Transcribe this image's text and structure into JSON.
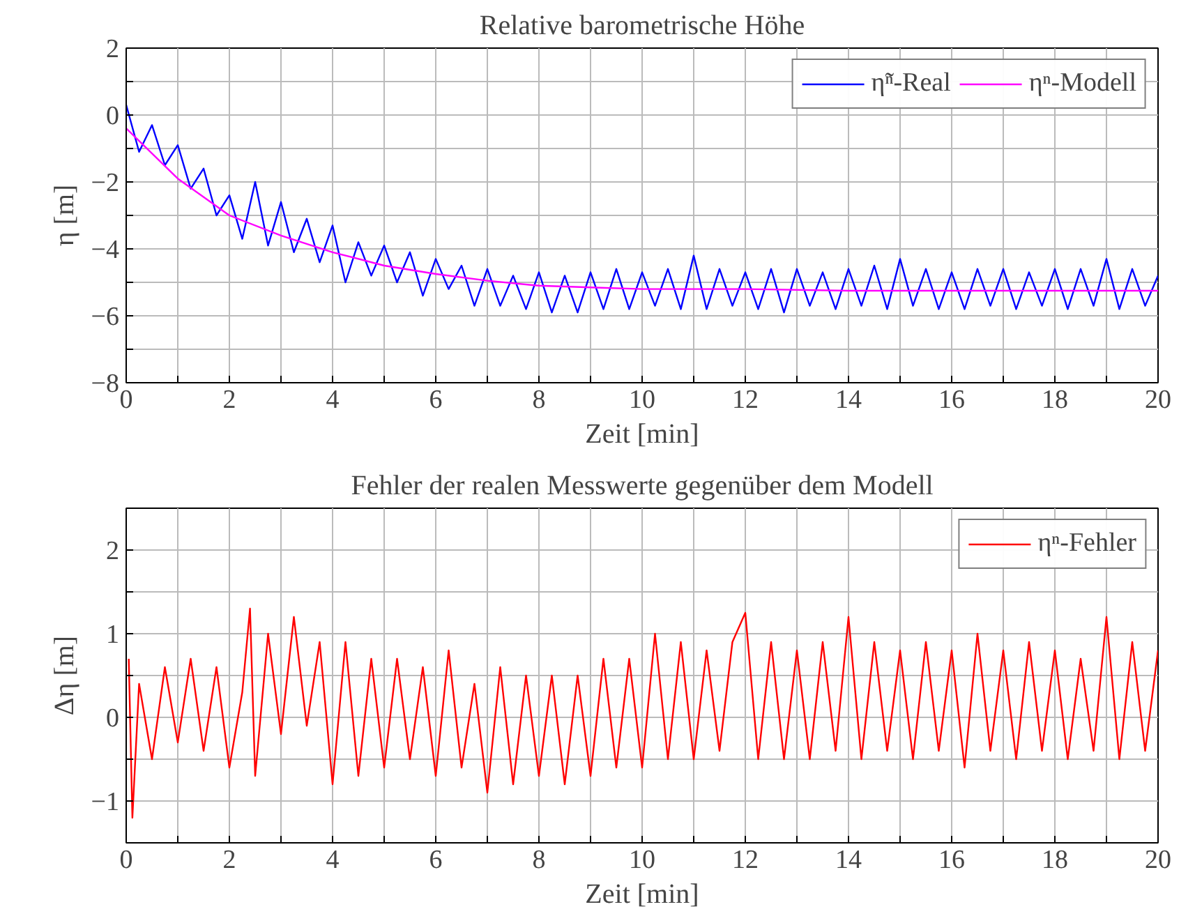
{
  "chart_data": [
    {
      "type": "line",
      "title": "Relative barometrische Höhe",
      "xlabel": "Zeit [min]",
      "ylabel": "η [m]",
      "xlim": [
        0,
        20
      ],
      "ylim": [
        -8,
        2
      ],
      "xticks": [
        0,
        {
          "value": 1,
          "label": null
        },
        2,
        {
          "value": 3,
          "label": null
        },
        4,
        {
          "value": 5,
          "label": null
        },
        6,
        {
          "value": 7,
          "label": null
        },
        8,
        {
          "value": 9,
          "label": null
        },
        10,
        {
          "value": 11,
          "label": null
        },
        12,
        {
          "value": 13,
          "label": null
        },
        14,
        {
          "value": 15,
          "label": null
        },
        16,
        {
          "value": 17,
          "label": null
        },
        18,
        {
          "value": 19,
          "label": null
        },
        20
      ],
      "yticks": [
        -8,
        {
          "value": -7,
          "label": null
        },
        -6,
        {
          "value": -5,
          "label": null
        },
        -4,
        {
          "value": -3,
          "label": null
        },
        -2,
        {
          "value": -1,
          "label": null
        },
        0,
        {
          "value": 1,
          "label": null
        },
        2
      ],
      "grid": true,
      "legend": "top right",
      "marker": "none",
      "line_style": "solid",
      "series": [
        {
          "name": "η̃ⁿ-Real",
          "color": "#0000ff",
          "x": [
            0,
            0.25,
            0.5,
            0.75,
            1,
            1.25,
            1.5,
            1.75,
            2,
            2.25,
            2.5,
            2.75,
            3,
            3.25,
            3.5,
            3.75,
            4,
            4.25,
            4.5,
            4.75,
            5,
            5.25,
            5.5,
            5.75,
            6,
            6.25,
            6.5,
            6.75,
            7,
            7.25,
            7.5,
            7.75,
            8,
            8.25,
            8.5,
            8.75,
            9,
            9.25,
            9.5,
            9.75,
            10,
            10.25,
            10.5,
            10.75,
            11,
            11.25,
            11.5,
            11.75,
            12,
            12.25,
            12.5,
            12.75,
            13,
            13.25,
            13.5,
            13.75,
            14,
            14.25,
            14.5,
            14.75,
            15,
            15.25,
            15.5,
            15.75,
            16,
            16.25,
            16.5,
            16.75,
            17,
            17.25,
            17.5,
            17.75,
            18,
            18.25,
            18.5,
            18.75,
            19,
            19.25,
            19.5,
            19.75,
            20
          ],
          "values": [
            0.3,
            -1.1,
            -0.3,
            -1.5,
            -0.9,
            -2.2,
            -1.6,
            -3.0,
            -2.4,
            -3.7,
            -2.0,
            -3.9,
            -2.6,
            -4.1,
            -3.1,
            -4.4,
            -3.3,
            -5.0,
            -3.8,
            -4.8,
            -3.9,
            -5.0,
            -4.1,
            -5.4,
            -4.3,
            -5.2,
            -4.5,
            -5.7,
            -4.6,
            -5.7,
            -4.8,
            -5.8,
            -4.7,
            -5.9,
            -4.8,
            -5.9,
            -4.7,
            -5.8,
            -4.6,
            -5.8,
            -4.7,
            -5.7,
            -4.6,
            -5.8,
            -4.2,
            -5.8,
            -4.6,
            -5.7,
            -4.7,
            -5.8,
            -4.6,
            -5.9,
            -4.6,
            -5.7,
            -4.7,
            -5.8,
            -4.6,
            -5.7,
            -4.5,
            -5.8,
            -4.3,
            -5.7,
            -4.6,
            -5.8,
            -4.7,
            -5.8,
            -4.6,
            -5.7,
            -4.6,
            -5.8,
            -4.7,
            -5.7,
            -4.6,
            -5.8,
            -4.6,
            -5.7,
            -4.3,
            -5.8,
            -4.6,
            -5.7,
            -4.8
          ]
        },
        {
          "name": "ηⁿ-Modell",
          "color": "#ff00ff",
          "x": [
            0,
            1,
            2,
            3,
            4,
            5,
            6,
            7,
            8,
            9,
            10,
            12,
            14,
            16,
            18,
            20
          ],
          "values": [
            -0.4,
            -1.9,
            -3.0,
            -3.6,
            -4.1,
            -4.5,
            -4.75,
            -4.95,
            -5.1,
            -5.15,
            -5.2,
            -5.2,
            -5.25,
            -5.25,
            -5.25,
            -5.25
          ]
        }
      ]
    },
    {
      "type": "line",
      "title": "Fehler der realen Messwerte gegenüber dem Modell",
      "xlabel": "Zeit [min]",
      "ylabel": "Δη [m]",
      "xlim": [
        0,
        20
      ],
      "ylim": [
        -1.5,
        2.5
      ],
      "xticks": [
        0,
        {
          "value": 1,
          "label": null
        },
        2,
        {
          "value": 3,
          "label": null
        },
        4,
        {
          "value": 5,
          "label": null
        },
        6,
        {
          "value": 7,
          "label": null
        },
        8,
        {
          "value": 9,
          "label": null
        },
        10,
        {
          "value": 11,
          "label": null
        },
        12,
        {
          "value": 13,
          "label": null
        },
        14,
        {
          "value": 15,
          "label": null
        },
        16,
        {
          "value": 17,
          "label": null
        },
        18,
        {
          "value": 19,
          "label": null
        },
        20
      ],
      "yticks": [
        {
          "value": -1.5,
          "label": null
        },
        -1,
        {
          "value": -0.5,
          "label": null
        },
        0,
        {
          "value": 0.5,
          "label": null
        },
        1,
        {
          "value": 1.5,
          "label": null
        },
        2,
        {
          "value": 2.5,
          "label": null
        }
      ],
      "grid": true,
      "legend": "top right",
      "marker": "none",
      "line_style": "solid",
      "series": [
        {
          "name": "ηⁿ-Fehler",
          "color": "#ff0000",
          "x": [
            0.05,
            0.12,
            0.25,
            0.5,
            0.75,
            1,
            1.25,
            1.5,
            1.75,
            2,
            2.25,
            2.4,
            2.5,
            2.75,
            3,
            3.25,
            3.5,
            3.75,
            4,
            4.25,
            4.5,
            4.75,
            5,
            5.25,
            5.5,
            5.75,
            6,
            6.25,
            6.5,
            6.75,
            7,
            7.25,
            7.5,
            7.75,
            8,
            8.25,
            8.5,
            8.75,
            9,
            9.25,
            9.5,
            9.75,
            10,
            10.25,
            10.5,
            10.75,
            11,
            11.25,
            11.5,
            11.75,
            12,
            12.25,
            12.5,
            12.75,
            13,
            13.25,
            13.5,
            13.75,
            14,
            14.25,
            14.5,
            14.75,
            15,
            15.25,
            15.5,
            15.75,
            16,
            16.25,
            16.5,
            16.75,
            17,
            17.25,
            17.5,
            17.75,
            18,
            18.25,
            18.5,
            18.75,
            19,
            19.25,
            19.5,
            19.75,
            20
          ],
          "values": [
            0.7,
            -1.2,
            0.4,
            -0.5,
            0.6,
            -0.3,
            0.7,
            -0.4,
            0.6,
            -0.6,
            0.3,
            1.3,
            -0.7,
            1.0,
            -0.2,
            1.2,
            -0.1,
            0.9,
            -0.8,
            0.9,
            -0.7,
            0.7,
            -0.6,
            0.7,
            -0.5,
            0.6,
            -0.7,
            0.8,
            -0.6,
            0.4,
            -0.9,
            0.6,
            -0.8,
            0.5,
            -0.7,
            0.5,
            -0.8,
            0.5,
            -0.7,
            0.7,
            -0.6,
            0.7,
            -0.6,
            1.0,
            -0.5,
            0.9,
            -0.5,
            0.8,
            -0.4,
            0.9,
            1.25,
            -0.5,
            0.9,
            -0.5,
            0.8,
            -0.5,
            0.9,
            -0.4,
            1.2,
            -0.5,
            0.9,
            -0.4,
            0.8,
            -0.5,
            0.9,
            -0.4,
            0.8,
            -0.6,
            1.0,
            -0.4,
            0.8,
            -0.5,
            0.9,
            -0.4,
            0.8,
            -0.5,
            0.7,
            -0.4,
            1.2,
            -0.5,
            0.9,
            -0.4,
            0.8
          ]
        }
      ]
    }
  ]
}
